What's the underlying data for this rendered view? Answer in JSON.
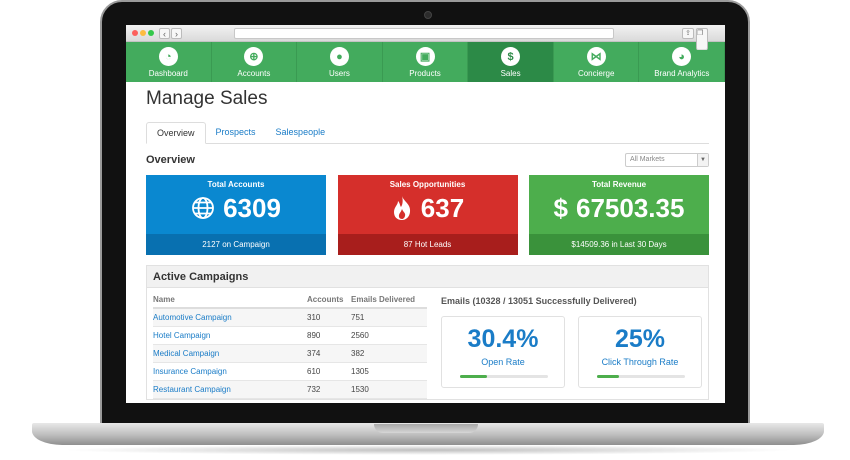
{
  "nav": [
    {
      "label": "Dashboard",
      "icon": "dashboard-icon",
      "glyph": "◔",
      "active": false
    },
    {
      "label": "Accounts",
      "icon": "globe-icon",
      "glyph": "⊕",
      "active": false
    },
    {
      "label": "Users",
      "icon": "user-icon",
      "glyph": "●",
      "active": false
    },
    {
      "label": "Products",
      "icon": "cart-icon",
      "glyph": "▣",
      "active": false
    },
    {
      "label": "Sales",
      "icon": "sales-icon",
      "glyph": "$",
      "active": true
    },
    {
      "label": "Concierge",
      "icon": "bowtie-icon",
      "glyph": "⋈",
      "active": false
    },
    {
      "label": "Brand Analytics",
      "icon": "analytics-icon",
      "glyph": "◕",
      "active": false
    }
  ],
  "page": {
    "title": "Manage Sales"
  },
  "tabs": [
    {
      "label": "Overview",
      "active": true
    },
    {
      "label": "Prospects",
      "active": false
    },
    {
      "label": "Salespeople",
      "active": false
    }
  ],
  "overview": {
    "title": "Overview",
    "market_select": "All Markets"
  },
  "stats": [
    {
      "label": "Total Accounts",
      "value": "6309",
      "footer": "2127 on Campaign",
      "icon": "globe-icon",
      "color": "#0a88d0"
    },
    {
      "label": "Sales Opportunities",
      "value": "637",
      "footer": "87 Hot Leads",
      "icon": "fire-icon",
      "color": "#d52f2b"
    },
    {
      "label": "Total Revenue",
      "value": "67503.35",
      "footer": "$14509.36 in Last 30 Days",
      "icon": "dollar-icon",
      "color": "#4dae4c"
    }
  ],
  "campaigns": {
    "title": "Active Campaigns",
    "columns": [
      "Name",
      "Accounts",
      "Emails Delivered"
    ],
    "rows": [
      [
        "Automotive Campaign",
        "310",
        "751"
      ],
      [
        "Hotel Campaign",
        "890",
        "2560"
      ],
      [
        "Medical Campaign",
        "374",
        "382"
      ],
      [
        "Insurance Campaign",
        "610",
        "1305"
      ],
      [
        "Restaurant Campaign",
        "732",
        "1530"
      ]
    ]
  },
  "emails": {
    "title": "Emails (10328 / 13051 Successfully Delivered)",
    "cards": [
      {
        "value": "30.4%",
        "label": "Open Rate",
        "progress": 0.304
      },
      {
        "value": "25%",
        "label": "Click Through Rate",
        "progress": 0.25
      }
    ]
  },
  "colors": {
    "nav_green": "#43ab5d",
    "nav_active": "#2c8a47",
    "link_blue": "#1a7cc7"
  }
}
